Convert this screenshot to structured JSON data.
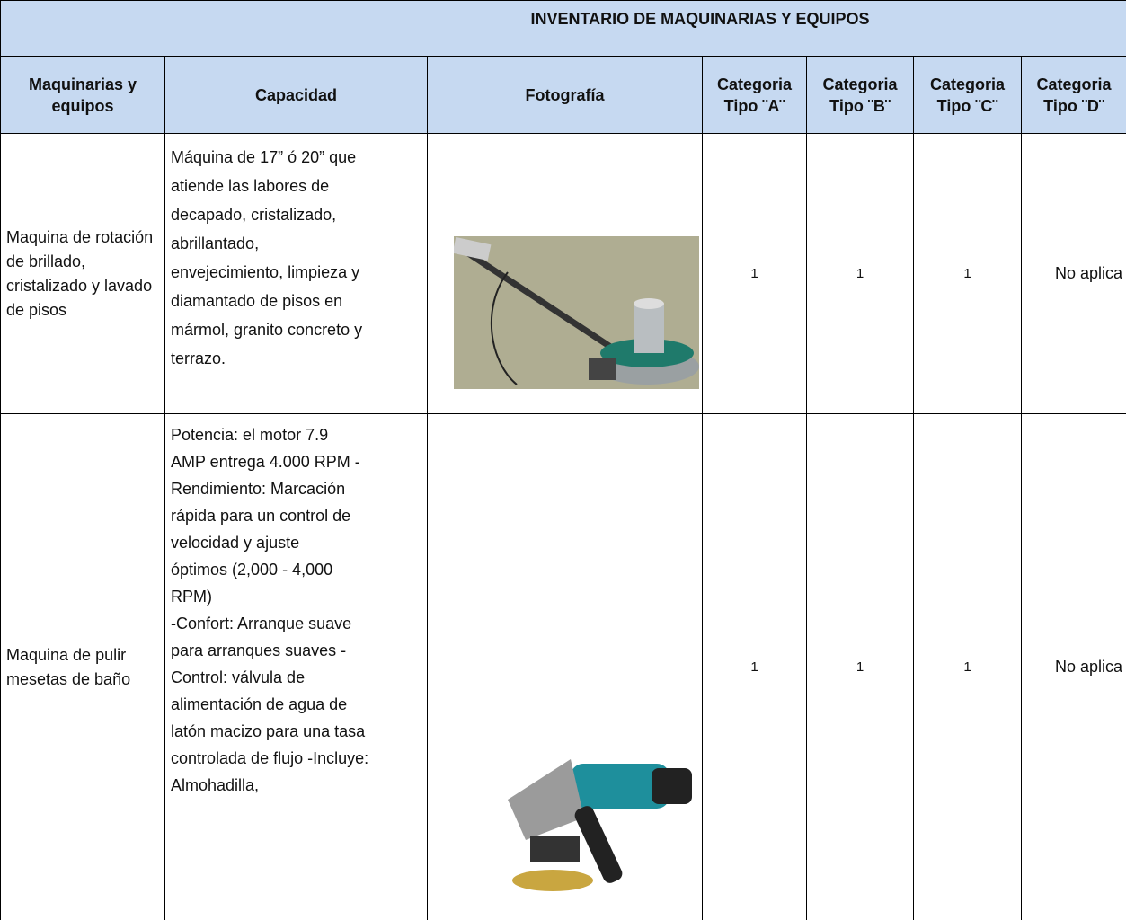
{
  "header": {
    "title": "INVENTARIO DE MAQUINARIAS Y EQUIPOS",
    "columns": [
      "Maquinarias y equipos",
      "Capacidad",
      "Fotografía",
      "Categoria Tipo ¨A¨",
      "Categoria Tipo ¨B¨",
      "Categoria Tipo ¨C¨",
      "Categoria Tipo ¨D¨"
    ]
  },
  "table": {
    "rows": [
      {
        "machine": "Maquina de rotación de brillado, cristalizado y lavado de pisos",
        "capacity": [
          "Máquina de 17” ó 20” que",
          "atiende las labores de",
          "decapado, cristalizado,",
          "abrillantado,",
          "envejecimiento, limpieza y",
          "diamantado de pisos en",
          "mármol, granito concreto y",
          "terrazo."
        ],
        "categories": [
          1,
          1,
          1,
          "No aplica"
        ]
      },
      {
        "machine": "Maquina de pulir mesetas de baño",
        "capacity": [
          "Potencia: el motor 7.9",
          "AMP entrega 4.000 RPM -",
          "Rendimiento: Marcación",
          "rápida para un control de",
          "velocidad y ajuste",
          "óptimos (2,000 - 4,000",
          "RPM)",
          "-Confort: Arranque suave",
          "para arranques suaves -",
          "Control: válvula de",
          "alimentación de agua de",
          "latón macizo para una tasa",
          "controlada de flujo -Incluye:",
          "Almohadilla,"
        ],
        "categories": [
          1,
          1,
          1,
          "No aplica"
        ]
      }
    ]
  }
}
